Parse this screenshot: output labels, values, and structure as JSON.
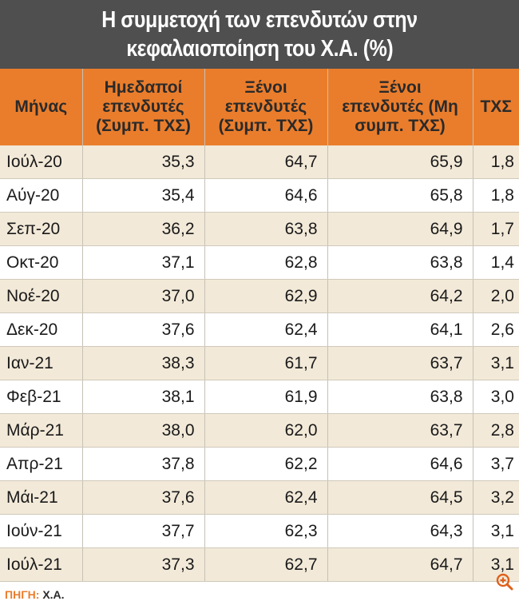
{
  "title": {
    "line1": "Η συμμετοχή των επενδυτών στην",
    "line2": "κεφαλαιοποίηση του Χ.Α. (%)"
  },
  "table": {
    "headers": [
      [
        "Μήνας"
      ],
      [
        "Ημεδαποί",
        "επενδυτές",
        "(Συμπ. ΤΧΣ)"
      ],
      [
        "Ξένοι",
        "επενδυτές",
        "(Συμπ. ΤΧΣ)"
      ],
      [
        "Ξένοι",
        "επενδυτές (Μη",
        "συμπ. ΤΧΣ)"
      ],
      [
        "ΤΧΣ"
      ]
    ],
    "rows": [
      [
        "Ιούλ-20",
        "35,3",
        "64,7",
        "65,9",
        "1,8"
      ],
      [
        "Αύγ-20",
        "35,4",
        "64,6",
        "65,8",
        "1,8"
      ],
      [
        "Σεπ-20",
        "36,2",
        "63,8",
        "64,9",
        "1,7"
      ],
      [
        "Οκτ-20",
        "37,1",
        "62,8",
        "63,8",
        "1,4"
      ],
      [
        "Νοέ-20",
        "37,0",
        "62,9",
        "64,2",
        "2,0"
      ],
      [
        "Δεκ-20",
        "37,6",
        "62,4",
        "64,1",
        "2,6"
      ],
      [
        "Ιαν-21",
        "38,3",
        "61,7",
        "63,7",
        "3,1"
      ],
      [
        "Φεβ-21",
        "38,1",
        "61,9",
        "63,8",
        "3,0"
      ],
      [
        "Μάρ-21",
        "38,0",
        "62,0",
        "63,7",
        "2,8"
      ],
      [
        "Απρ-21",
        "37,8",
        "62,2",
        "64,6",
        "3,7"
      ],
      [
        "Μάι-21",
        "37,6",
        "62,4",
        "64,5",
        "3,2"
      ],
      [
        "Ιούν-21",
        "37,7",
        "62,3",
        "64,3",
        "3,1"
      ],
      [
        "Ιούλ-21",
        "37,3",
        "62,7",
        "64,7",
        "3,1"
      ]
    ]
  },
  "source": {
    "label": "ΠΗΓΗ:",
    "value": "Χ.Α."
  },
  "colors": {
    "header_orange": "#ea7d2c",
    "title_gray": "#4f4f4f",
    "row_beige": "#f2e9d8"
  },
  "icons": {
    "zoom": "zoom-in-icon"
  }
}
